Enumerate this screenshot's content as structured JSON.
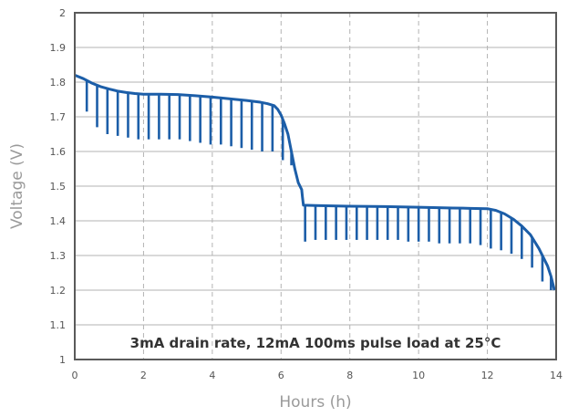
{
  "chart_data": {
    "type": "line",
    "xlabel": "Hours (h)",
    "ylabel": "Voltage (V)",
    "xlim": [
      0,
      14
    ],
    "ylim": [
      1,
      2
    ],
    "x_ticks": [
      "0",
      "2",
      "4",
      "6",
      "8",
      "10",
      "12",
      "14"
    ],
    "y_ticks": [
      "1",
      "1.1",
      "1.2",
      "1.3",
      "1.4",
      "1.5",
      "1.6",
      "1.7",
      "1.8",
      "1.9",
      "2"
    ],
    "grid": {
      "x": "dashed vertical",
      "y": "solid horizontal"
    },
    "annotation": "3mA drain rate, 12mA 100ms pulse load at 25°C",
    "colors": {
      "series": "#1c5ea8",
      "grid": "#b3b3b3",
      "frame": "#5a5a5a"
    },
    "series": [
      {
        "x": [
          0,
          0.25,
          0.5,
          0.75,
          1,
          1.25,
          1.5,
          1.75,
          2,
          2.5,
          3,
          3.5,
          4,
          4.5,
          5,
          5.4,
          5.6,
          5.8,
          5.9,
          6.0,
          6.1,
          6.2,
          6.3,
          6.4,
          6.5,
          6.6,
          6.62,
          6.65,
          7,
          8,
          9,
          10,
          11,
          11.5,
          12,
          12.25,
          12.5,
          12.75,
          13,
          13.25,
          13.5,
          13.75,
          13.85,
          13.95
        ],
        "y": [
          1.82,
          1.81,
          1.797,
          1.787,
          1.78,
          1.774,
          1.77,
          1.767,
          1.765,
          1.765,
          1.764,
          1.761,
          1.757,
          1.752,
          1.747,
          1.742,
          1.738,
          1.732,
          1.722,
          1.705,
          1.68,
          1.65,
          1.6,
          1.55,
          1.51,
          1.49,
          1.47,
          1.445,
          1.444,
          1.442,
          1.441,
          1.439,
          1.437,
          1.436,
          1.435,
          1.43,
          1.42,
          1.405,
          1.385,
          1.36,
          1.32,
          1.27,
          1.24,
          1.2
        ]
      }
    ],
    "pulse_drops": {
      "x": [
        0.35,
        0.65,
        0.95,
        1.25,
        1.55,
        1.85,
        2.15,
        2.45,
        2.75,
        3.05,
        3.35,
        3.65,
        3.95,
        4.25,
        4.55,
        4.85,
        5.15,
        5.45,
        5.75,
        6.05,
        6.3,
        6.7,
        7.0,
        7.3,
        7.6,
        7.9,
        8.2,
        8.5,
        8.8,
        9.1,
        9.4,
        9.7,
        10.0,
        10.3,
        10.6,
        10.9,
        11.2,
        11.5,
        11.8,
        12.1,
        12.4,
        12.7,
        13.0,
        13.3,
        13.6,
        13.85
      ],
      "y_low": [
        1.715,
        1.67,
        1.65,
        1.645,
        1.64,
        1.635,
        1.635,
        1.635,
        1.635,
        1.635,
        1.63,
        1.625,
        1.62,
        1.62,
        1.615,
        1.61,
        1.605,
        1.6,
        1.6,
        1.575,
        1.56,
        1.34,
        1.345,
        1.345,
        1.345,
        1.345,
        1.345,
        1.345,
        1.345,
        1.345,
        1.345,
        1.34,
        1.34,
        1.34,
        1.335,
        1.335,
        1.335,
        1.335,
        1.33,
        1.32,
        1.315,
        1.305,
        1.29,
        1.265,
        1.225,
        1.2
      ]
    }
  }
}
